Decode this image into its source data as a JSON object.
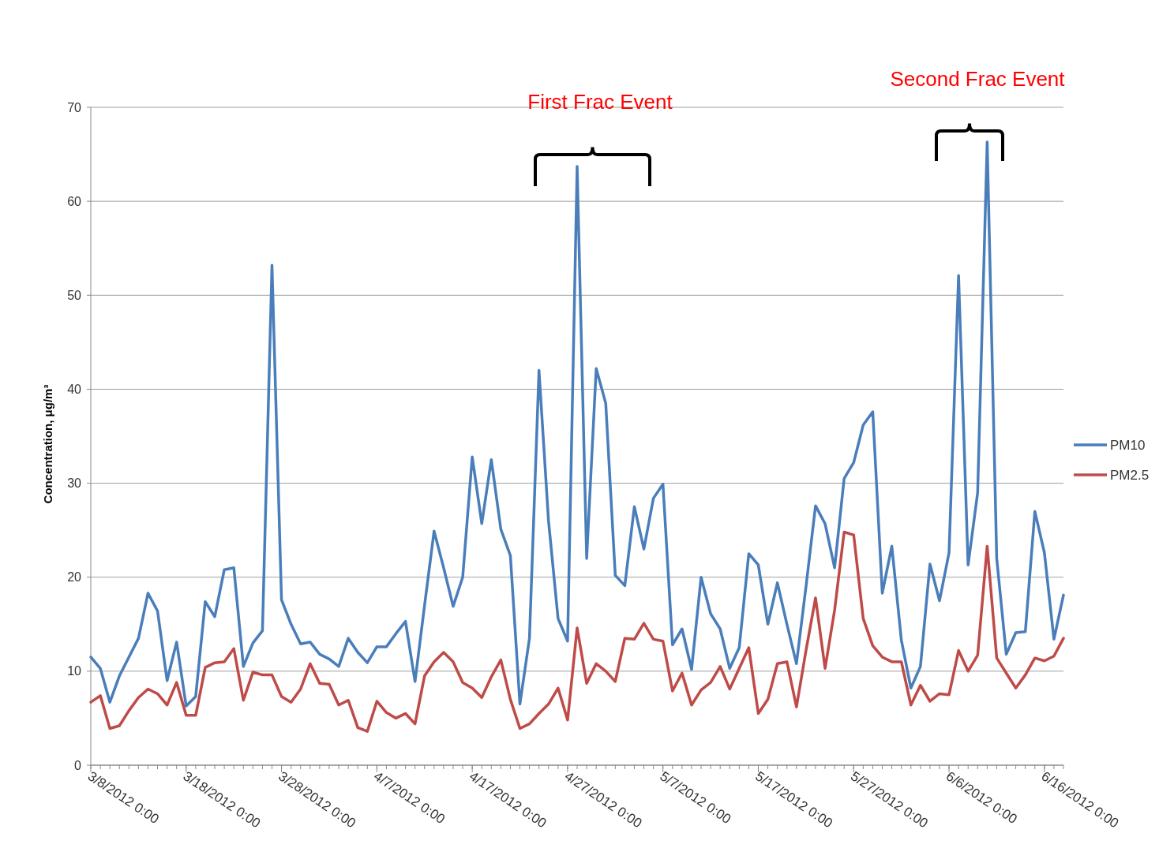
{
  "chart_data": {
    "type": "line",
    "ylabel": "Concentration, μg/m³",
    "annotations": [
      "First Frac Event",
      "Second Frac Event"
    ],
    "x": [
      "2012-03-08",
      "2012-03-09",
      "2012-03-10",
      "2012-03-11",
      "2012-03-12",
      "2012-03-13",
      "2012-03-14",
      "2012-03-15",
      "2012-03-16",
      "2012-03-17",
      "2012-03-18",
      "2012-03-19",
      "2012-03-20",
      "2012-03-21",
      "2012-03-22",
      "2012-03-23",
      "2012-03-24",
      "2012-03-25",
      "2012-03-26",
      "2012-03-27",
      "2012-03-28",
      "2012-03-29",
      "2012-03-30",
      "2012-03-31",
      "2012-04-01",
      "2012-04-02",
      "2012-04-03",
      "2012-04-04",
      "2012-04-05",
      "2012-04-06",
      "2012-04-07",
      "2012-04-08",
      "2012-04-09",
      "2012-04-10",
      "2012-04-11",
      "2012-04-12",
      "2012-04-13",
      "2012-04-14",
      "2012-04-15",
      "2012-04-16",
      "2012-04-17",
      "2012-04-18",
      "2012-04-19",
      "2012-04-20",
      "2012-04-21",
      "2012-04-22",
      "2012-04-23",
      "2012-04-24",
      "2012-04-25",
      "2012-04-26",
      "2012-04-27",
      "2012-04-28",
      "2012-04-29",
      "2012-04-30",
      "2012-05-01",
      "2012-05-02",
      "2012-05-03",
      "2012-05-04",
      "2012-05-05",
      "2012-05-06",
      "2012-05-07",
      "2012-05-08",
      "2012-05-09",
      "2012-05-10",
      "2012-05-11",
      "2012-05-12",
      "2012-05-13",
      "2012-05-14",
      "2012-05-15",
      "2012-05-16",
      "2012-05-17",
      "2012-05-18",
      "2012-05-19",
      "2012-05-20",
      "2012-05-21",
      "2012-05-22",
      "2012-05-23",
      "2012-05-24",
      "2012-05-25",
      "2012-05-26",
      "2012-05-27",
      "2012-05-28",
      "2012-05-29",
      "2012-05-30",
      "2012-05-31",
      "2012-06-01",
      "2012-06-02",
      "2012-06-03",
      "2012-06-04",
      "2012-06-05",
      "2012-06-06",
      "2012-06-07",
      "2012-06-08",
      "2012-06-09",
      "2012-06-10",
      "2012-06-11",
      "2012-06-12",
      "2012-06-13",
      "2012-06-14",
      "2012-06-15",
      "2012-06-16",
      "2012-06-17",
      "2012-06-18"
    ],
    "series": [
      {
        "name": "PM10",
        "color": "#4a7ebb",
        "values": [
          11.5,
          10.3,
          6.7,
          9.5,
          11.5,
          13.5,
          18.3,
          16.4,
          9.0,
          13.1,
          6.3,
          7.3,
          17.4,
          15.8,
          20.8,
          21.0,
          10.5,
          13.0,
          14.3,
          53.2,
          17.6,
          15.0,
          12.9,
          13.1,
          11.8,
          11.3,
          10.5,
          13.5,
          12.0,
          10.9,
          12.6,
          12.6,
          14.0,
          15.3,
          8.9,
          17.0,
          24.9,
          21.0,
          16.9,
          20.0,
          32.8,
          25.7,
          32.5,
          25.1,
          22.3,
          6.5,
          13.5,
          42.0,
          26.0,
          15.6,
          13.2,
          63.7,
          22.0,
          42.2,
          38.5,
          20.2,
          19.1,
          27.5,
          23.0,
          28.4,
          29.9,
          12.8,
          14.5,
          10.2,
          20.0,
          16.1,
          14.5,
          10.3,
          12.5,
          22.5,
          21.3,
          15.0,
          19.4,
          15.0,
          10.8,
          19.0,
          27.6,
          25.7,
          21.0,
          30.5,
          32.2,
          36.2,
          37.6,
          18.3,
          23.3,
          13.3,
          8.2,
          10.5,
          21.4,
          17.5,
          22.6,
          52.1,
          21.3,
          29.0,
          66.3,
          22.0,
          11.8,
          14.1,
          14.2,
          27.0,
          22.6,
          13.4,
          18.1
        ]
      },
      {
        "name": "PM2.5",
        "color": "#be4b48",
        "values": [
          6.7,
          7.4,
          3.9,
          4.2,
          5.8,
          7.2,
          8.1,
          7.6,
          6.4,
          8.8,
          5.3,
          5.3,
          10.4,
          10.9,
          11.0,
          12.4,
          6.9,
          9.9,
          9.6,
          9.6,
          7.3,
          6.7,
          8.1,
          10.8,
          8.7,
          8.6,
          6.4,
          6.9,
          4.0,
          3.6,
          6.8,
          5.6,
          5.0,
          5.5,
          4.4,
          9.5,
          11.0,
          12.0,
          11.0,
          8.8,
          8.2,
          7.2,
          9.4,
          11.2,
          7.0,
          3.9,
          4.4,
          5.5,
          6.5,
          8.2,
          4.8,
          14.6,
          8.7,
          10.8,
          10.0,
          8.9,
          13.5,
          13.4,
          15.1,
          13.4,
          13.2,
          7.9,
          9.8,
          6.4,
          8.0,
          8.8,
          10.5,
          8.1,
          10.3,
          12.5,
          5.5,
          7.0,
          10.8,
          11.0,
          6.2,
          12.2,
          17.8,
          10.3,
          16.5,
          24.8,
          24.5,
          15.6,
          12.7,
          11.5,
          11.0,
          11.0,
          6.4,
          8.5,
          6.8,
          7.6,
          7.5,
          12.2,
          10.0,
          11.7,
          23.3,
          11.4,
          9.8,
          8.2,
          9.6,
          11.4,
          11.1,
          11.6,
          13.5
        ]
      }
    ],
    "xlim": [
      "2012-03-08",
      "2012-06-18"
    ],
    "xticks": [
      {
        "value": "2012-03-08",
        "label": "3/8/2012 0:00"
      },
      {
        "value": "2012-03-18",
        "label": "3/18/2012 0:00"
      },
      {
        "value": "2012-03-28",
        "label": "3/28/2012 0:00"
      },
      {
        "value": "2012-04-07",
        "label": "4/7/2012 0:00"
      },
      {
        "value": "2012-04-17",
        "label": "4/17/2012 0:00"
      },
      {
        "value": "2012-04-27",
        "label": "4/27/2012 0:00"
      },
      {
        "value": "2012-05-07",
        "label": "5/7/2012 0:00"
      },
      {
        "value": "2012-05-17",
        "label": "5/17/2012 0:00"
      },
      {
        "value": "2012-05-27",
        "label": "5/27/2012 0:00"
      },
      {
        "value": "2012-06-06",
        "label": "6/6/2012 0:00"
      },
      {
        "value": "2012-06-16",
        "label": "6/16/2012 0:00"
      }
    ],
    "ylim": [
      0,
      70
    ],
    "yticks": [
      0,
      10,
      20,
      30,
      40,
      50,
      60,
      70
    ],
    "grid": "y",
    "legend": "right",
    "marker": "none",
    "line_style": "solid"
  }
}
